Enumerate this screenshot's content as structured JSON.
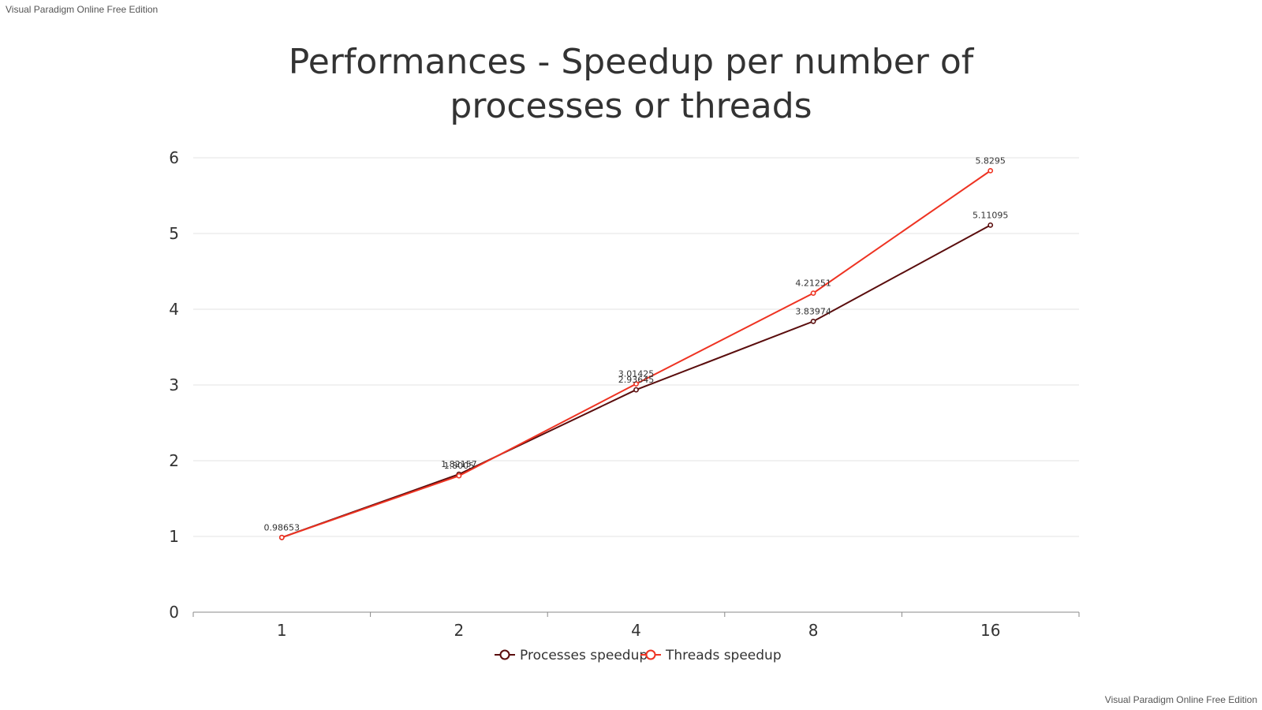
{
  "watermark": {
    "top": "Visual Paradigm Online Free Edition",
    "bottom": "Visual Paradigm Online Free Edition"
  },
  "chart_data": {
    "type": "line",
    "title": [
      "Performances - Speedup per number of",
      "processes or threads"
    ],
    "categories": [
      "1",
      "2",
      "4",
      "8",
      "16"
    ],
    "series": [
      {
        "name": "Processes speedup",
        "color": "#5a0d0d",
        "values": [
          0.98653,
          1.82157,
          2.93645,
          3.83974,
          5.11095
        ],
        "labels": [
          "",
          "1.82157",
          "2.93645",
          "3.83974",
          "5.11095"
        ]
      },
      {
        "name": "Threads speedup",
        "color": "#ee3322",
        "values": [
          0.98653,
          1.8005,
          3.01425,
          4.21251,
          5.8295
        ],
        "labels": [
          "0.98653",
          "1.8005",
          "3.01425",
          "4.21251",
          "5.8295"
        ]
      }
    ],
    "ylim": [
      0,
      6
    ],
    "yticks": [
      "0",
      "1",
      "2",
      "3",
      "4",
      "5",
      "6"
    ],
    "grid": true,
    "legend": "bottom-center"
  }
}
